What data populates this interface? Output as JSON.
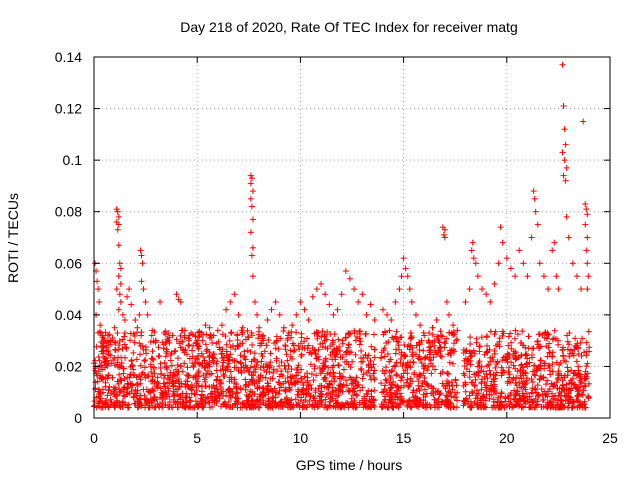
{
  "chart_data": {
    "type": "scatter",
    "title": "Day 218 of 2020, Rate Of TEC Index for receiver matg",
    "xlabel": "GPS time / hours",
    "ylabel": "ROTI / TECUs",
    "xlim": [
      0,
      25
    ],
    "ylim": [
      0,
      0.14
    ],
    "xticks": [
      0,
      5,
      10,
      15,
      20,
      25
    ],
    "yticks": [
      0,
      0.02,
      0.04,
      0.06,
      0.08,
      0.1,
      0.12,
      0.14
    ],
    "xtick_labels": [
      "0",
      "5",
      "10",
      "15",
      "20",
      "25"
    ],
    "ytick_labels": [
      "0",
      "0.02",
      "0.04",
      "0.06",
      "0.08",
      "0.1",
      "0.12",
      "0.14"
    ],
    "grid": true,
    "marker": "+",
    "series_color": "#ff0000",
    "series": [
      {
        "name": "ROTI",
        "points": [
          [
            0.05,
            0.06
          ],
          [
            0.1,
            0.057
          ],
          [
            0.15,
            0.053
          ],
          [
            0.2,
            0.05
          ],
          [
            0.25,
            0.045
          ],
          [
            0.1,
            0.04
          ],
          [
            0.3,
            0.036
          ],
          [
            0.2,
            0.033
          ],
          [
            0.4,
            0.032
          ],
          [
            0.5,
            0.03
          ],
          [
            0.6,
            0.028
          ],
          [
            0.7,
            0.026
          ],
          [
            0.8,
            0.03
          ],
          [
            0.9,
            0.031
          ],
          [
            1.0,
            0.035
          ],
          [
            1.1,
            0.081
          ],
          [
            1.15,
            0.08
          ],
          [
            1.2,
            0.078
          ],
          [
            1.1,
            0.076
          ],
          [
            1.2,
            0.075
          ],
          [
            1.15,
            0.073
          ],
          [
            1.2,
            0.067
          ],
          [
            1.25,
            0.06
          ],
          [
            1.3,
            0.058
          ],
          [
            1.2,
            0.055
          ],
          [
            1.3,
            0.052
          ],
          [
            1.1,
            0.05
          ],
          [
            1.25,
            0.048
          ],
          [
            1.3,
            0.045
          ],
          [
            1.2,
            0.042
          ],
          [
            1.4,
            0.04
          ],
          [
            1.5,
            0.038
          ],
          [
            1.6,
            0.047
          ],
          [
            1.7,
            0.05
          ],
          [
            1.8,
            0.044
          ],
          [
            2.0,
            0.038
          ],
          [
            2.1,
            0.035
          ],
          [
            2.2,
            0.04
          ],
          [
            2.25,
            0.065
          ],
          [
            2.3,
            0.063
          ],
          [
            2.35,
            0.06
          ],
          [
            2.3,
            0.053
          ],
          [
            2.4,
            0.05
          ],
          [
            2.5,
            0.045
          ],
          [
            2.6,
            0.04
          ],
          [
            2.8,
            0.032
          ],
          [
            3.0,
            0.03
          ],
          [
            3.2,
            0.045
          ],
          [
            3.4,
            0.033
          ],
          [
            3.6,
            0.03
          ],
          [
            3.8,
            0.032
          ],
          [
            4.0,
            0.048
          ],
          [
            4.1,
            0.046
          ],
          [
            4.2,
            0.045
          ],
          [
            4.4,
            0.034
          ],
          [
            4.6,
            0.03
          ],
          [
            4.8,
            0.028
          ],
          [
            5.0,
            0.03
          ],
          [
            5.2,
            0.033
          ],
          [
            5.4,
            0.036
          ],
          [
            5.6,
            0.035
          ],
          [
            5.8,
            0.032
          ],
          [
            6.0,
            0.034
          ],
          [
            6.2,
            0.036
          ],
          [
            6.4,
            0.042
          ],
          [
            6.6,
            0.045
          ],
          [
            6.8,
            0.048
          ],
          [
            7.0,
            0.04
          ],
          [
            7.2,
            0.035
          ],
          [
            7.6,
            0.094
          ],
          [
            7.65,
            0.093
          ],
          [
            7.6,
            0.091
          ],
          [
            7.7,
            0.088
          ],
          [
            7.6,
            0.085
          ],
          [
            7.65,
            0.082
          ],
          [
            7.7,
            0.077
          ],
          [
            7.6,
            0.072
          ],
          [
            7.7,
            0.066
          ],
          [
            7.65,
            0.063
          ],
          [
            7.7,
            0.055
          ],
          [
            7.8,
            0.045
          ],
          [
            7.9,
            0.04
          ],
          [
            8.0,
            0.035
          ],
          [
            8.2,
            0.03
          ],
          [
            8.4,
            0.038
          ],
          [
            8.6,
            0.042
          ],
          [
            8.8,
            0.045
          ],
          [
            9.0,
            0.04
          ],
          [
            9.2,
            0.035
          ],
          [
            9.4,
            0.032
          ],
          [
            9.6,
            0.036
          ],
          [
            9.8,
            0.04
          ],
          [
            10.0,
            0.045
          ],
          [
            10.2,
            0.042
          ],
          [
            10.4,
            0.038
          ],
          [
            10.6,
            0.047
          ],
          [
            10.8,
            0.05
          ],
          [
            11.0,
            0.052
          ],
          [
            11.2,
            0.048
          ],
          [
            11.4,
            0.044
          ],
          [
            11.6,
            0.04
          ],
          [
            11.8,
            0.042
          ],
          [
            12.0,
            0.048
          ],
          [
            12.2,
            0.057
          ],
          [
            12.4,
            0.054
          ],
          [
            12.6,
            0.05
          ],
          [
            12.8,
            0.045
          ],
          [
            13.0,
            0.048
          ],
          [
            13.2,
            0.04
          ],
          [
            13.4,
            0.044
          ],
          [
            13.6,
            0.038
          ],
          [
            14.0,
            0.042
          ],
          [
            14.2,
            0.04
          ],
          [
            14.4,
            0.038
          ],
          [
            14.6,
            0.045
          ],
          [
            14.8,
            0.05
          ],
          [
            14.9,
            0.055
          ],
          [
            15.0,
            0.062
          ],
          [
            15.1,
            0.058
          ],
          [
            15.2,
            0.055
          ],
          [
            15.3,
            0.05
          ],
          [
            15.4,
            0.045
          ],
          [
            15.6,
            0.04
          ],
          [
            15.8,
            0.036
          ],
          [
            16.0,
            0.032
          ],
          [
            16.2,
            0.03
          ],
          [
            16.4,
            0.035
          ],
          [
            16.6,
            0.038
          ],
          [
            16.9,
            0.074
          ],
          [
            17.0,
            0.073
          ],
          [
            16.95,
            0.071
          ],
          [
            17.0,
            0.07
          ],
          [
            17.1,
            0.045
          ],
          [
            17.2,
            0.04
          ],
          [
            17.4,
            0.036
          ],
          [
            17.6,
            0.034
          ],
          [
            18.0,
            0.045
          ],
          [
            18.2,
            0.05
          ],
          [
            18.3,
            0.065
          ],
          [
            18.35,
            0.068
          ],
          [
            18.4,
            0.062
          ],
          [
            18.5,
            0.06
          ],
          [
            18.6,
            0.055
          ],
          [
            18.8,
            0.05
          ],
          [
            19.0,
            0.048
          ],
          [
            19.2,
            0.045
          ],
          [
            19.4,
            0.052
          ],
          [
            19.6,
            0.06
          ],
          [
            19.7,
            0.074
          ],
          [
            19.8,
            0.068
          ],
          [
            20.0,
            0.062
          ],
          [
            20.2,
            0.058
          ],
          [
            20.4,
            0.055
          ],
          [
            20.6,
            0.065
          ],
          [
            20.8,
            0.06
          ],
          [
            21.0,
            0.055
          ],
          [
            21.2,
            0.07
          ],
          [
            21.3,
            0.088
          ],
          [
            21.35,
            0.085
          ],
          [
            21.4,
            0.08
          ],
          [
            21.5,
            0.075
          ],
          [
            21.6,
            0.06
          ],
          [
            21.8,
            0.055
          ],
          [
            22.0,
            0.05
          ],
          [
            22.2,
            0.065
          ],
          [
            22.3,
            0.068
          ],
          [
            22.4,
            0.055
          ],
          [
            22.5,
            0.05
          ],
          [
            22.7,
            0.137
          ],
          [
            22.75,
            0.121
          ],
          [
            22.8,
            0.112
          ],
          [
            22.85,
            0.106
          ],
          [
            22.7,
            0.103
          ],
          [
            22.8,
            0.1
          ],
          [
            22.9,
            0.097
          ],
          [
            22.75,
            0.094
          ],
          [
            22.85,
            0.092
          ],
          [
            22.9,
            0.078
          ],
          [
            23.0,
            0.07
          ],
          [
            23.2,
            0.06
          ],
          [
            23.4,
            0.055
          ],
          [
            23.6,
            0.05
          ],
          [
            23.7,
            0.115
          ],
          [
            23.8,
            0.083
          ],
          [
            23.85,
            0.081
          ],
          [
            23.9,
            0.079
          ],
          [
            23.8,
            0.075
          ],
          [
            23.9,
            0.07
          ],
          [
            23.85,
            0.065
          ],
          [
            23.9,
            0.06
          ],
          [
            23.95,
            0.055
          ],
          [
            23.9,
            0.05
          ]
        ]
      }
    ]
  }
}
